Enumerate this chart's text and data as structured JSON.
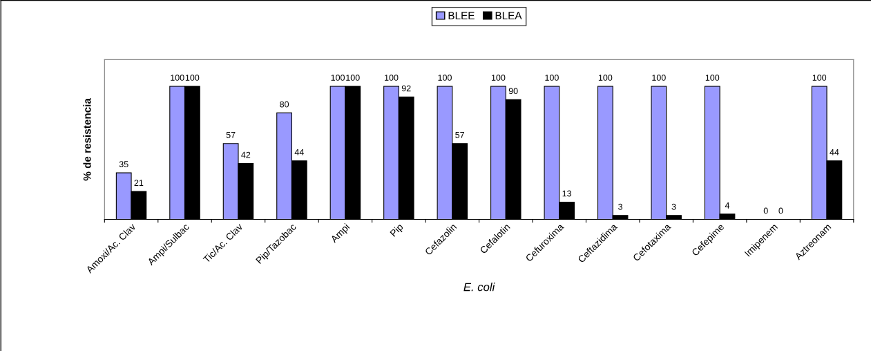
{
  "chart_data": {
    "type": "bar",
    "xlabel": "E. coli",
    "ylabel": "% de resistencia",
    "categories": [
      "Amoxi/Ac. Clav",
      "Ampi/Sulbac",
      "Tic/Ac. Clav",
      "Pip/Tazobac",
      "Ampi",
      "Pip",
      "Cefazolin",
      "Cefalotin",
      "Cefuroxima",
      "Ceftazidima",
      "Cefotaxima",
      "Cefepime",
      "Imipenem",
      "Aztreonam"
    ],
    "series": [
      {
        "name": "BLEE",
        "color": "#9999ff",
        "values": [
          35,
          100,
          57,
          80,
          100,
          100,
          100,
          100,
          100,
          100,
          100,
          100,
          0,
          100
        ]
      },
      {
        "name": "BLEA",
        "color": "#000000",
        "values": [
          21,
          100,
          42,
          44,
          100,
          92,
          57,
          90,
          13,
          3,
          3,
          4,
          0,
          44
        ]
      }
    ],
    "data_labels": true,
    "legend": "top",
    "grid": false
  }
}
